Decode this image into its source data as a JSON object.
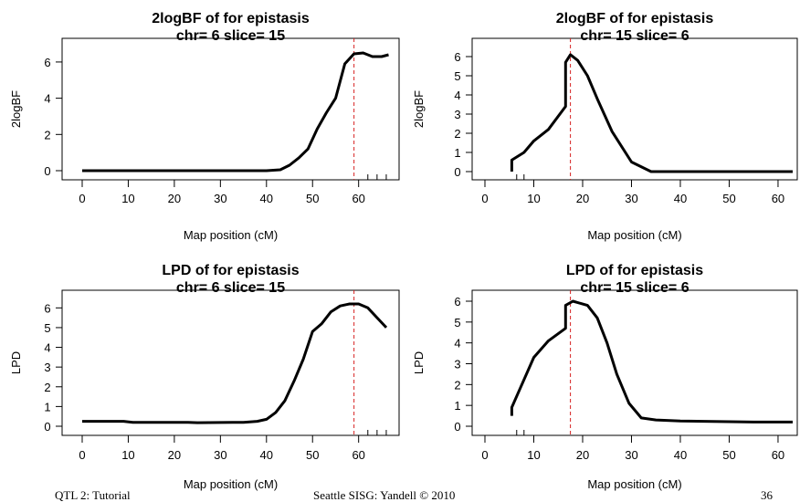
{
  "footer": {
    "left": "QTL 2: Tutorial",
    "center": "Seattle SISG: Yandell © 2010",
    "page": "36"
  },
  "chart_data": [
    {
      "type": "line",
      "title": "2logBF of  for epistasis",
      "subtitle": "chr= 6 slice= 15",
      "xlabel": "Map position (cM)",
      "ylabel": "2logBF",
      "xlim": [
        0,
        67
      ],
      "ylim": [
        0,
        6.5
      ],
      "xticks": [
        0,
        10,
        20,
        30,
        40,
        50,
        60
      ],
      "yticks": [
        0,
        2,
        4,
        6
      ],
      "vline": 59,
      "rug": [
        62,
        64,
        66
      ],
      "x": [
        0,
        10,
        20,
        30,
        40,
        43,
        45,
        47,
        49,
        51,
        53,
        55,
        57,
        59,
        61,
        63,
        65,
        66.5
      ],
      "y": [
        0,
        0,
        0,
        0,
        0,
        0.05,
        0.3,
        0.7,
        1.2,
        2.3,
        3.2,
        4.0,
        5.9,
        6.45,
        6.5,
        6.3,
        6.3,
        6.4
      ]
    },
    {
      "type": "line",
      "title": "2logBF of  for epistasis",
      "subtitle": "chr= 15 slice= 6",
      "xlabel": "Map position (cM)",
      "ylabel": "2logBF",
      "xlim": [
        0,
        63
      ],
      "ylim": [
        0,
        6
      ],
      "xticks": [
        0,
        10,
        20,
        30,
        40,
        50,
        60
      ],
      "yticks": [
        0,
        1,
        2,
        3,
        4,
        5,
        6
      ],
      "vline": 17.5,
      "rug": [
        6.5,
        8
      ],
      "x": [
        5.5,
        5.5,
        8,
        10,
        13,
        16.5,
        16.5,
        17.5,
        19,
        21,
        23,
        26,
        30,
        34,
        40,
        50,
        63
      ],
      "y": [
        0,
        0.6,
        1.0,
        1.6,
        2.2,
        3.4,
        5.7,
        6.1,
        5.8,
        5.0,
        3.8,
        2.1,
        0.5,
        0,
        0,
        0,
        0
      ]
    },
    {
      "type": "line",
      "title": "LPD of  for epistasis",
      "subtitle": "chr= 6 slice= 15",
      "xlabel": "Map position (cM)",
      "ylabel": "LPD",
      "xlim": [
        0,
        67
      ],
      "ylim": [
        0,
        6.2
      ],
      "xticks": [
        0,
        10,
        20,
        30,
        40,
        50,
        60
      ],
      "yticks": [
        0,
        1,
        2,
        3,
        4,
        5,
        6
      ],
      "vline": 59,
      "rug": [
        62,
        64,
        66
      ],
      "x": [
        0,
        9,
        11,
        23,
        25,
        35,
        38,
        40,
        42,
        44,
        46,
        48,
        50,
        52,
        54,
        56,
        58,
        60,
        62,
        64,
        66
      ],
      "y": [
        0.25,
        0.25,
        0.2,
        0.2,
        0.18,
        0.2,
        0.25,
        0.35,
        0.7,
        1.3,
        2.3,
        3.4,
        4.8,
        5.2,
        5.8,
        6.1,
        6.2,
        6.2,
        6.0,
        5.5,
        5.0
      ]
    },
    {
      "type": "line",
      "title": "LPD of  for epistasis",
      "subtitle": "chr= 15 slice= 6",
      "xlabel": "Map position (cM)",
      "ylabel": "LPD",
      "xlim": [
        0,
        63
      ],
      "ylim": [
        0,
        6
      ],
      "xticks": [
        0,
        10,
        20,
        30,
        40,
        50,
        60
      ],
      "yticks": [
        0,
        1,
        2,
        3,
        4,
        5,
        6
      ],
      "vline": 17.5,
      "rug": [
        6.5,
        8
      ],
      "x": [
        5.5,
        5.5,
        7,
        10,
        13,
        16.5,
        16.5,
        18,
        21,
        23,
        25,
        27,
        29.5,
        32,
        35,
        40,
        55,
        63
      ],
      "y": [
        0.5,
        0.9,
        1.7,
        3.3,
        4.1,
        4.7,
        5.8,
        6.0,
        5.8,
        5.2,
        4.0,
        2.5,
        1.1,
        0.4,
        0.3,
        0.25,
        0.2,
        0.2
      ]
    }
  ]
}
